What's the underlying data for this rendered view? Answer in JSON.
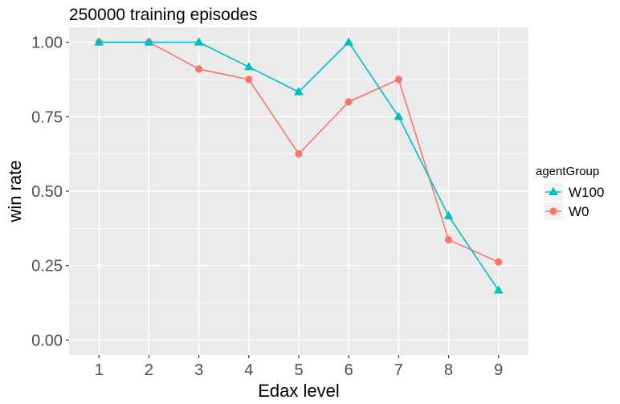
{
  "chart_data": {
    "type": "line",
    "title": "250000 training episodes",
    "xlabel": "Edax level",
    "ylabel": "win rate",
    "x": [
      1,
      2,
      3,
      4,
      5,
      6,
      7,
      8,
      9
    ],
    "xlim": [
      0.4,
      9.6
    ],
    "ylim": [
      -0.05,
      1.05
    ],
    "yticks": [
      0.0,
      0.25,
      0.5,
      0.75,
      1.0
    ],
    "ytick_labels": [
      "0.00",
      "0.25",
      "0.50",
      "0.75",
      "1.00"
    ],
    "grid": true,
    "legend": {
      "title": "agentGroup",
      "placement": "right"
    },
    "series": [
      {
        "name": "W100",
        "color": "#00bfc4",
        "marker": "triangle",
        "values": [
          1.0,
          1.0,
          1.0,
          0.917,
          0.833,
          1.0,
          0.75,
          0.417,
          0.167
        ]
      },
      {
        "name": "W0",
        "color": "#f8766d",
        "marker": "circle",
        "values": [
          1.0,
          1.0,
          0.91,
          0.875,
          0.625,
          0.8,
          0.875,
          0.337,
          0.262
        ]
      }
    ]
  }
}
